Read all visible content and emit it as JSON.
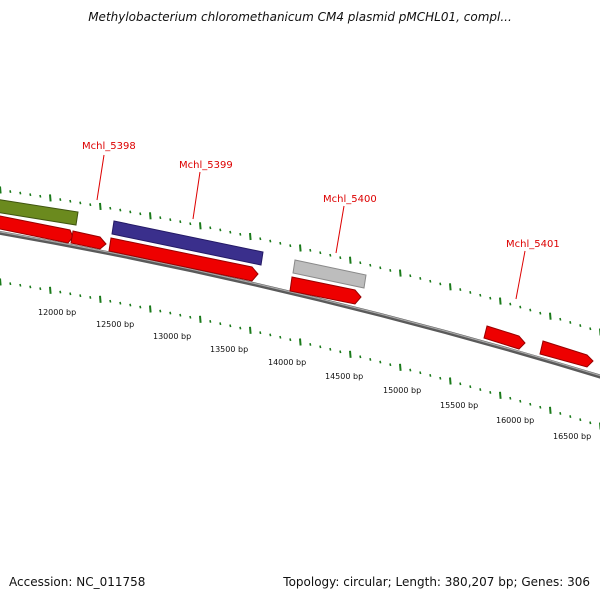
{
  "title": "Methylobacterium chloromethanicum CM4 plasmid pMCHL01, compl...",
  "footer": {
    "accession": "Accession: NC_011758",
    "summary": "Topology: circular; Length: 380,207 bp; Genes: 306"
  },
  "colors": {
    "gene_label": "#dd0000",
    "cds": "#ee0000",
    "backbone": "#808080",
    "tick": "#1a7a1a",
    "olive_feature": "#6b8a1e",
    "purple_feature": "#3a2f8c",
    "gray_feature": "#bdbdbd"
  },
  "gene_labels": [
    "Mchl_5398",
    "Mchl_5399",
    "Mchl_5400",
    "Mchl_5401"
  ],
  "bp_labels": [
    "12000 bp",
    "12500 bp",
    "13000 bp",
    "13500 bp",
    "14000 bp",
    "14500 bp",
    "15000 bp",
    "15500 bp",
    "16000 bp",
    "16500 bp"
  ]
}
